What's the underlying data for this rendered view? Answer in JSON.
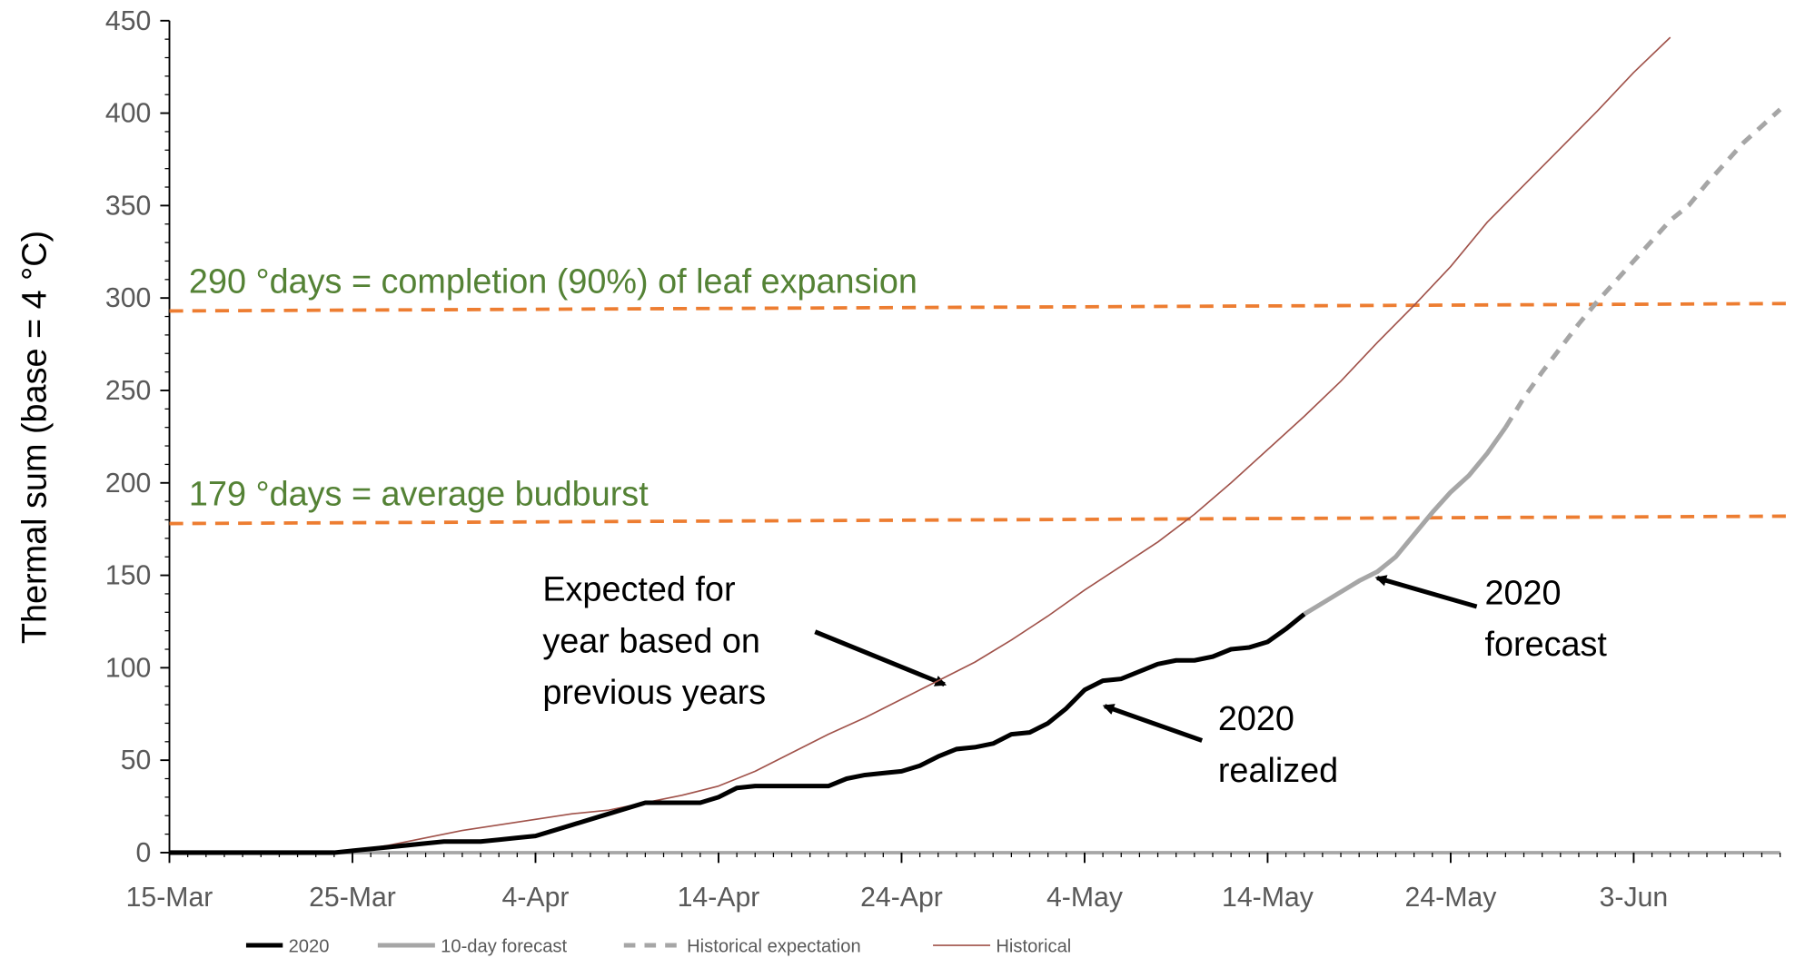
{
  "chart_data": {
    "type": "line",
    "y_label": "Thermal sum (base = 4 °C)",
    "xlim": [
      0,
      88
    ],
    "ylim": [
      0,
      450
    ],
    "xticks": [
      {
        "value": 0,
        "label": "15-Mar"
      },
      {
        "value": 10,
        "label": "25-Mar"
      },
      {
        "value": 20,
        "label": "4-Apr"
      },
      {
        "value": 30,
        "label": "14-Apr"
      },
      {
        "value": 40,
        "label": "24-Apr"
      },
      {
        "value": 50,
        "label": "4-May"
      },
      {
        "value": 60,
        "label": "14-May"
      },
      {
        "value": 70,
        "label": "24-May"
      },
      {
        "value": 80,
        "label": "3-Jun"
      }
    ],
    "yticks": [
      0,
      50,
      100,
      150,
      200,
      250,
      300,
      350,
      400,
      450
    ],
    "series": [
      {
        "name": "2020",
        "color": "#000000",
        "style": "solid",
        "x": [
          0,
          1,
          2,
          3,
          4,
          5,
          6,
          7,
          8,
          9,
          10,
          11,
          12,
          13,
          14,
          15,
          16,
          17,
          18,
          19,
          20,
          21,
          22,
          23,
          24,
          25,
          26,
          27,
          28,
          29,
          30,
          31,
          32,
          33,
          34,
          35,
          36,
          37,
          38,
          39,
          40,
          41,
          42,
          43,
          44,
          45,
          46,
          47,
          48,
          49,
          50,
          51,
          52,
          53,
          54,
          55,
          56,
          57,
          58,
          59,
          60,
          61,
          62
        ],
        "values": [
          0,
          0,
          0,
          0,
          0,
          0,
          0,
          0,
          0,
          0,
          1,
          2,
          3,
          4,
          5,
          6,
          6,
          6,
          7,
          8,
          9,
          12,
          15,
          18,
          21,
          24,
          27,
          27,
          27,
          27,
          30,
          35,
          36,
          36,
          36,
          36,
          36,
          40,
          42,
          43,
          44,
          47,
          52,
          56,
          57,
          59,
          64,
          65,
          70,
          78,
          88,
          93,
          94,
          98,
          102,
          104,
          104,
          106,
          110,
          111,
          114,
          121,
          129
        ]
      },
      {
        "name": "10-day forecast",
        "color": "#a6a6a6",
        "style": "solid",
        "x": [
          62,
          63,
          64,
          65,
          66,
          67,
          68,
          69,
          70,
          71,
          72,
          73
        ],
        "values": [
          129,
          135,
          141,
          147,
          152,
          160,
          172,
          184,
          195,
          204,
          216,
          230
        ]
      },
      {
        "name": "Historical expectation",
        "color": "#a6a6a6",
        "style": "dashed",
        "x": [
          73,
          74,
          75,
          76,
          77,
          78,
          79,
          80,
          81,
          82,
          83,
          84,
          85,
          86,
          87,
          88
        ],
        "values": [
          230,
          246,
          260,
          273,
          286,
          298,
          309,
          320,
          331,
          342,
          350,
          362,
          373,
          384,
          393,
          402
        ]
      },
      {
        "name": "Historical",
        "color": "#a0524a",
        "style": "thin",
        "x": [
          0,
          2,
          4,
          6,
          8,
          10,
          12,
          14,
          16,
          18,
          20,
          22,
          24,
          26,
          28,
          30,
          32,
          34,
          36,
          38,
          40,
          42,
          44,
          46,
          48,
          50,
          52,
          54,
          56,
          58,
          60,
          62,
          64,
          66,
          68,
          70,
          72,
          74,
          76,
          78,
          80,
          82
        ],
        "values": [
          0,
          0,
          0,
          0,
          0,
          1,
          4,
          8,
          12,
          15,
          18,
          21,
          23,
          27,
          31,
          36,
          44,
          54,
          64,
          73,
          83,
          93,
          103,
          115,
          128,
          142,
          155,
          168,
          183,
          200,
          218,
          236,
          255,
          276,
          296,
          317,
          341,
          361,
          381,
          401,
          422,
          441
        ]
      }
    ],
    "thresholds": [
      {
        "label": "290 °days = completion (90%) of leaf expansion",
        "values": [
          293,
          297
        ],
        "color": "#ed7d31",
        "text_color": "#548235"
      },
      {
        "label": "179 °days = average budburst",
        "values": [
          178,
          182
        ],
        "color": "#ed7d31",
        "text_color": "#548235"
      }
    ],
    "annotations": [
      {
        "lines": [
          "Expected for",
          "year based on",
          "previous years"
        ]
      },
      {
        "lines": [
          "2020",
          "realized"
        ]
      },
      {
        "lines": [
          "2020",
          "forecast"
        ]
      }
    ]
  }
}
